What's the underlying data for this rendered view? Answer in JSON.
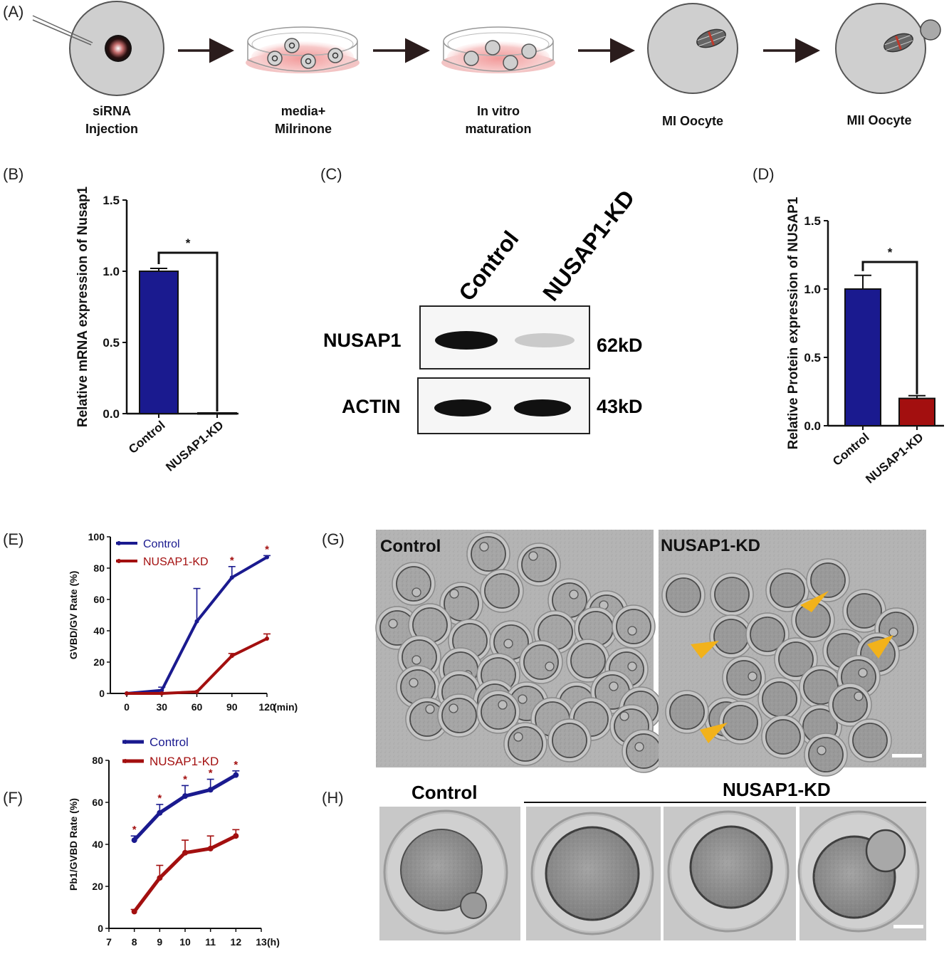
{
  "panel_labels": {
    "A": "(A)",
    "B": "(B)",
    "C": "(C)",
    "D": "(D)",
    "E": "(E)",
    "F": "(F)",
    "G": "(G)",
    "H": "(H)"
  },
  "workflow": {
    "steps": [
      {
        "line1": "siRNA",
        "line2": "Injection"
      },
      {
        "line1": "media+",
        "line2": "Milrinone"
      },
      {
        "line1": "In vitro",
        "line2": "maturation"
      },
      {
        "line1": "MI Oocyte",
        "line2": ""
      },
      {
        "line1": "MII Oocyte",
        "line2": ""
      }
    ]
  },
  "western_blot": {
    "lanes": [
      "Control",
      "NUSAP1-KD"
    ],
    "rows": [
      {
        "protein": "NUSAP1",
        "size": "62kD",
        "intensity": [
          1.0,
          0.12
        ]
      },
      {
        "protein": "ACTIN",
        "size": "43kD",
        "intensity": [
          1.0,
          1.0
        ]
      }
    ]
  },
  "micrographs": {
    "G_left": "Control",
    "G_right": "NUSAP1-KD",
    "H_left": "Control",
    "H_right": "NUSAP1-KD"
  },
  "colors": {
    "control": "#1a1a8f",
    "kd": "#a30f0f",
    "arrowhead": "#f2b21b"
  },
  "chart_data": [
    {
      "panel": "B",
      "type": "bar",
      "ylabel": "Relative mRNA expression of Nusap1",
      "categories": [
        "Control",
        "NUSAP1-KD"
      ],
      "values": [
        1.0,
        0.005
      ],
      "errors": [
        0.02,
        0.0
      ],
      "ylim": [
        0,
        1.5
      ],
      "yticks": [
        "0.0",
        "0.5",
        "1.0",
        "1.5"
      ],
      "significance": "*"
    },
    {
      "panel": "D",
      "type": "bar",
      "ylabel": "Relative Protein expression of NUSAP1",
      "categories": [
        "Control",
        "NUSAP1-KD"
      ],
      "values": [
        1.0,
        0.2
      ],
      "errors": [
        0.1,
        0.02
      ],
      "ylim": [
        0,
        1.5
      ],
      "yticks": [
        "0.0",
        "0.5",
        "1.0",
        "1.5"
      ],
      "significance": "*"
    },
    {
      "panel": "E",
      "type": "line",
      "ylabel": "GVBD/GV Rate (%)",
      "xunit": "(min)",
      "x": [
        0,
        30,
        60,
        90,
        120
      ],
      "xticks": [
        "0",
        "30",
        "60",
        "90",
        "120"
      ],
      "ylim": [
        0,
        100
      ],
      "yticks": [
        "0",
        "20",
        "40",
        "60",
        "80",
        "100"
      ],
      "legend": "top-left",
      "series": [
        {
          "name": "Control",
          "values": [
            0,
            2,
            46,
            74,
            87
          ],
          "errors": [
            0,
            2,
            21,
            7,
            1
          ]
        },
        {
          "name": "NUSAP1-KD",
          "values": [
            0,
            0,
            1,
            24,
            35
          ],
          "errors": [
            0,
            0,
            0,
            1.5,
            3
          ]
        }
      ],
      "significance": [
        "",
        "",
        "",
        "*",
        "*"
      ]
    },
    {
      "panel": "F",
      "type": "line",
      "ylabel": "Pb1/GVBD Rate (%)",
      "xunit": "(h)",
      "x": [
        8,
        9,
        10,
        11,
        12
      ],
      "xticks": [
        "7",
        "8",
        "9",
        "10",
        "11",
        "12",
        "13"
      ],
      "xlim": [
        7,
        13
      ],
      "ylim": [
        0,
        80
      ],
      "yticks": [
        "0",
        "20",
        "40",
        "60",
        "80"
      ],
      "legend": "top-left",
      "series": [
        {
          "name": "Control",
          "values": [
            42,
            55,
            63,
            66,
            73
          ],
          "errors": [
            2,
            4,
            5,
            5,
            2
          ]
        },
        {
          "name": "NUSAP1-KD",
          "values": [
            8,
            24,
            36,
            38,
            44
          ],
          "errors": [
            1,
            6,
            6,
            6,
            3
          ]
        }
      ],
      "significance": [
        "*",
        "*",
        "*",
        "*",
        "*"
      ]
    }
  ]
}
